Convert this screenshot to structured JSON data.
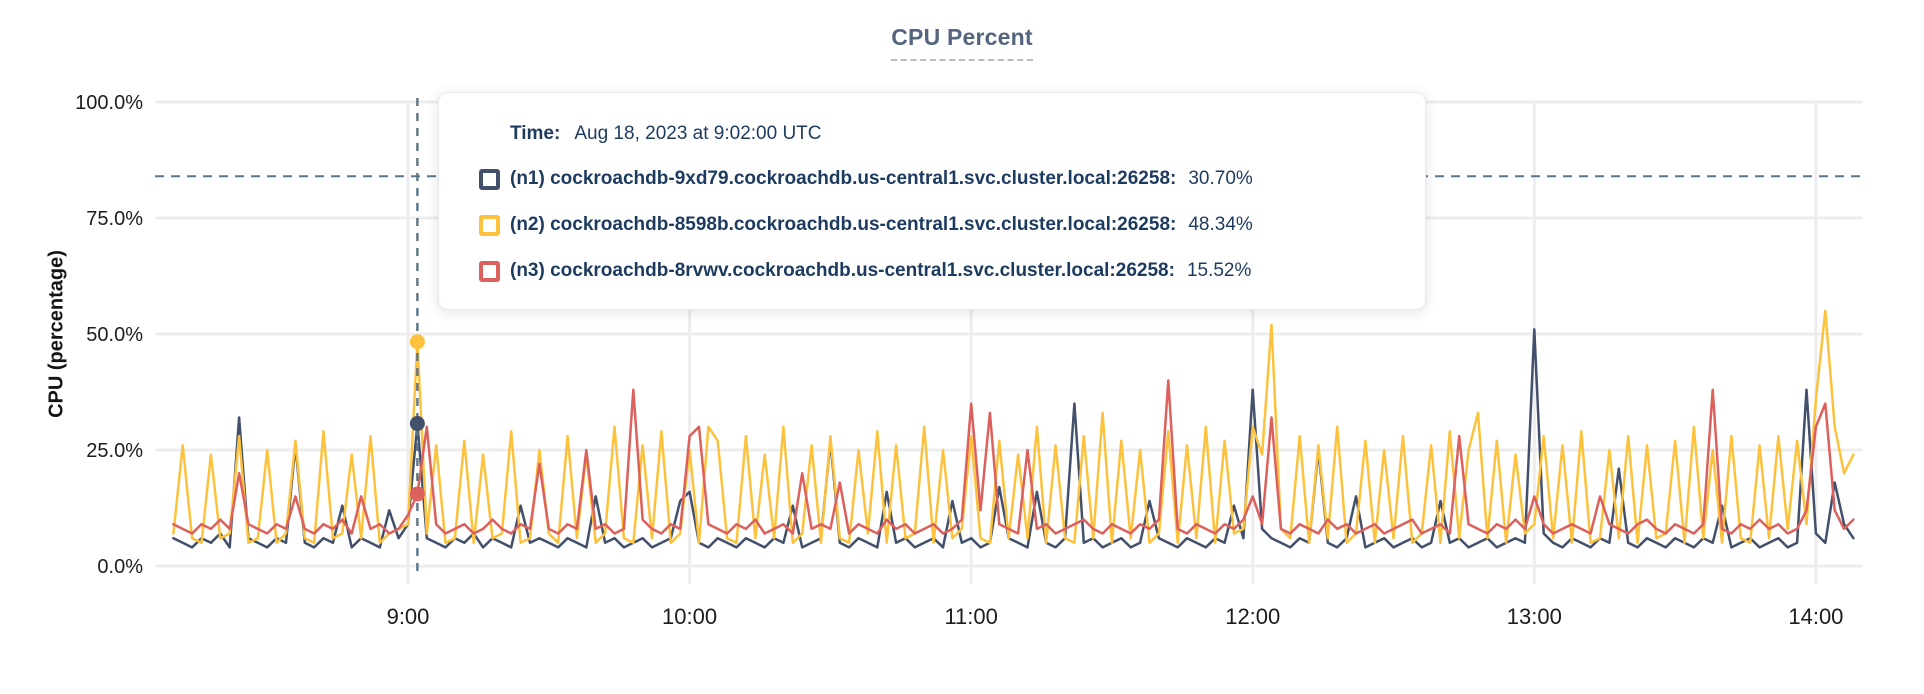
{
  "chart": {
    "title": "CPU Percent",
    "ylabel": "CPU (percentage)"
  },
  "tooltip": {
    "time_label": "Time:",
    "time_value": "Aug 18, 2023 at 9:02:00 UTC",
    "rows": [
      {
        "node": "n1",
        "label": "(n1) cockroachdb-9xd79.cockroachdb.us-central1.svc.cluster.local:26258:",
        "value": "30.70%",
        "color": "#42506b"
      },
      {
        "node": "n2",
        "label": "(n2) cockroachdb-8598b.cockroachdb.us-central1.svc.cluster.local:26258:",
        "value": "48.34%",
        "color": "#fcc23d"
      },
      {
        "node": "n3",
        "label": "(n3) cockroachdb-8rvwv.cockroachdb.us-central1.svc.cluster.local:26258:",
        "value": "15.52%",
        "color": "#dc605c"
      }
    ]
  },
  "chart_data": {
    "type": "line",
    "title": "CPU Percent",
    "xlabel": "",
    "ylabel": "CPU (percentage)",
    "ylim": [
      0,
      100
    ],
    "grid": true,
    "x_start": "8:10",
    "x_end": "14:08",
    "t_start_min": 490,
    "t_step_min": 2,
    "y_ticks": [
      {
        "value": 0,
        "label": "0.0%"
      },
      {
        "value": 25,
        "label": "25.0%"
      },
      {
        "value": 50,
        "label": "50.0%"
      },
      {
        "value": 75,
        "label": "75.0%"
      },
      {
        "value": 100,
        "label": "100.0%"
      }
    ],
    "x_ticks": [
      {
        "t": 540,
        "label": "9:00"
      },
      {
        "t": 600,
        "label": "10:00"
      },
      {
        "t": 660,
        "label": "11:00"
      },
      {
        "t": 720,
        "label": "12:00"
      },
      {
        "t": 780,
        "label": "13:00"
      },
      {
        "t": 840,
        "label": "14:00"
      }
    ],
    "threshold_line_percent": 84,
    "crosshair_color": "#5d7486",
    "grid_color": "#ededee",
    "hover": {
      "index": 26,
      "t": 542,
      "time": "Aug 18, 2023 at 9:02:00 UTC",
      "values": {
        "n1": 30.7,
        "n2": 48.34,
        "n3": 15.52
      }
    },
    "series": [
      {
        "name": "(n1) cockroachdb-9xd79.cockroachdb.us-central1.svc.cluster.local:26258",
        "short": "n1",
        "color": "#42506b",
        "values": [
          6,
          5,
          4,
          6,
          5,
          7,
          4,
          32,
          6,
          5,
          4,
          6,
          5,
          26,
          5,
          4,
          6,
          5,
          13,
          4,
          6,
          5,
          4,
          12,
          6,
          9,
          30.7,
          6,
          5,
          4,
          6,
          5,
          7,
          4,
          6,
          5,
          4,
          13,
          5,
          6,
          5,
          4,
          6,
          5,
          4,
          15,
          5,
          6,
          4,
          5,
          6,
          4,
          5,
          6,
          14,
          16,
          5,
          4,
          6,
          5,
          4,
          6,
          5,
          4,
          6,
          5,
          13,
          4,
          5,
          6,
          27,
          5,
          4,
          6,
          5,
          4,
          16,
          5,
          6,
          4,
          5,
          6,
          4,
          14,
          5,
          6,
          4,
          5,
          17,
          6,
          5,
          4,
          16,
          5,
          4,
          6,
          35,
          5,
          6,
          4,
          5,
          6,
          4,
          5,
          14,
          6,
          5,
          4,
          6,
          5,
          4,
          6,
          5,
          13,
          6,
          38,
          8,
          6,
          5,
          4,
          6,
          5,
          25,
          5,
          4,
          6,
          15,
          4,
          5,
          6,
          4,
          5,
          6,
          4,
          5,
          14,
          5,
          6,
          4,
          5,
          6,
          4,
          5,
          6,
          5,
          51,
          7,
          5,
          4,
          6,
          5,
          4,
          6,
          5,
          21,
          5,
          4,
          6,
          5,
          4,
          6,
          5,
          4,
          6,
          5,
          13,
          4,
          5,
          6,
          4,
          5,
          6,
          4,
          5,
          38,
          7,
          5,
          18,
          9,
          6
        ]
      },
      {
        "name": "(n2) cockroachdb-8598b.cockroachdb.us-central1.svc.cluster.local:26258",
        "short": "n2",
        "color": "#fcc23d",
        "values": [
          7,
          26,
          6,
          5,
          24,
          6,
          7,
          28,
          5,
          6,
          25,
          5,
          7,
          27,
          6,
          5,
          29,
          6,
          7,
          24,
          6,
          28,
          5,
          7,
          8,
          9,
          48.3,
          7,
          26,
          5,
          6,
          27,
          5,
          24,
          6,
          7,
          29,
          5,
          6,
          25,
          7,
          5,
          28,
          6,
          24,
          5,
          7,
          30,
          6,
          5,
          26,
          6,
          29,
          5,
          7,
          25,
          5,
          30,
          27,
          6,
          5,
          28,
          6,
          24,
          6,
          30,
          5,
          7,
          26,
          5,
          28,
          6,
          5,
          25,
          7,
          29,
          5,
          26,
          6,
          7,
          30,
          5,
          25,
          6,
          8,
          28,
          6,
          5,
          27,
          6,
          24,
          6,
          30,
          5,
          26,
          6,
          5,
          28,
          6,
          33,
          5,
          27,
          6,
          25,
          5,
          7,
          29,
          5,
          26,
          6,
          30,
          5,
          27,
          7,
          8,
          30,
          24,
          52,
          8,
          6,
          28,
          5,
          26,
          6,
          30,
          5,
          7,
          27,
          5,
          25,
          6,
          28,
          5,
          7,
          26,
          5,
          29,
          6,
          25,
          33,
          6,
          27,
          5,
          24,
          7,
          9,
          28,
          6,
          26,
          5,
          29,
          5,
          6,
          25,
          6,
          28,
          5,
          26,
          6,
          7,
          27,
          5,
          30,
          6,
          25,
          5,
          28,
          6,
          5,
          26,
          6,
          28,
          8,
          27,
          9,
          36,
          55,
          30,
          20,
          24
        ]
      },
      {
        "name": "(n3) cockroachdb-8rvwv.cockroachdb.us-central1.svc.cluster.local:26258",
        "short": "n3",
        "color": "#dc605c",
        "values": [
          9,
          8,
          7,
          9,
          8,
          10,
          8,
          20,
          9,
          8,
          7,
          9,
          8,
          15,
          8,
          7,
          9,
          8,
          10,
          7,
          15,
          8,
          9,
          7,
          8,
          11,
          15.5,
          30,
          9,
          7,
          8,
          9,
          7,
          8,
          10,
          8,
          7,
          9,
          8,
          22,
          8,
          7,
          9,
          8,
          25,
          8,
          9,
          7,
          8,
          38,
          10,
          8,
          7,
          9,
          8,
          28,
          30,
          9,
          8,
          7,
          9,
          8,
          10,
          7,
          8,
          9,
          7,
          20,
          8,
          9,
          8,
          18,
          7,
          9,
          8,
          7,
          10,
          8,
          9,
          7,
          8,
          9,
          7,
          8,
          10,
          35,
          12,
          33,
          9,
          8,
          7,
          25,
          8,
          9,
          7,
          8,
          9,
          10,
          8,
          7,
          9,
          8,
          7,
          9,
          8,
          10,
          40,
          8,
          7,
          9,
          8,
          7,
          9,
          8,
          10,
          15,
          9,
          32,
          8,
          7,
          9,
          8,
          7,
          10,
          8,
          9,
          7,
          8,
          9,
          7,
          8,
          9,
          10,
          7,
          8,
          9,
          7,
          28,
          9,
          8,
          7,
          9,
          8,
          10,
          8,
          15,
          9,
          7,
          8,
          9,
          8,
          7,
          15,
          9,
          8,
          7,
          9,
          10,
          8,
          7,
          9,
          8,
          7,
          9,
          38,
          8,
          7,
          9,
          8,
          10,
          8,
          9,
          7,
          8,
          12,
          30,
          35,
          12,
          8,
          10
        ]
      }
    ]
  }
}
